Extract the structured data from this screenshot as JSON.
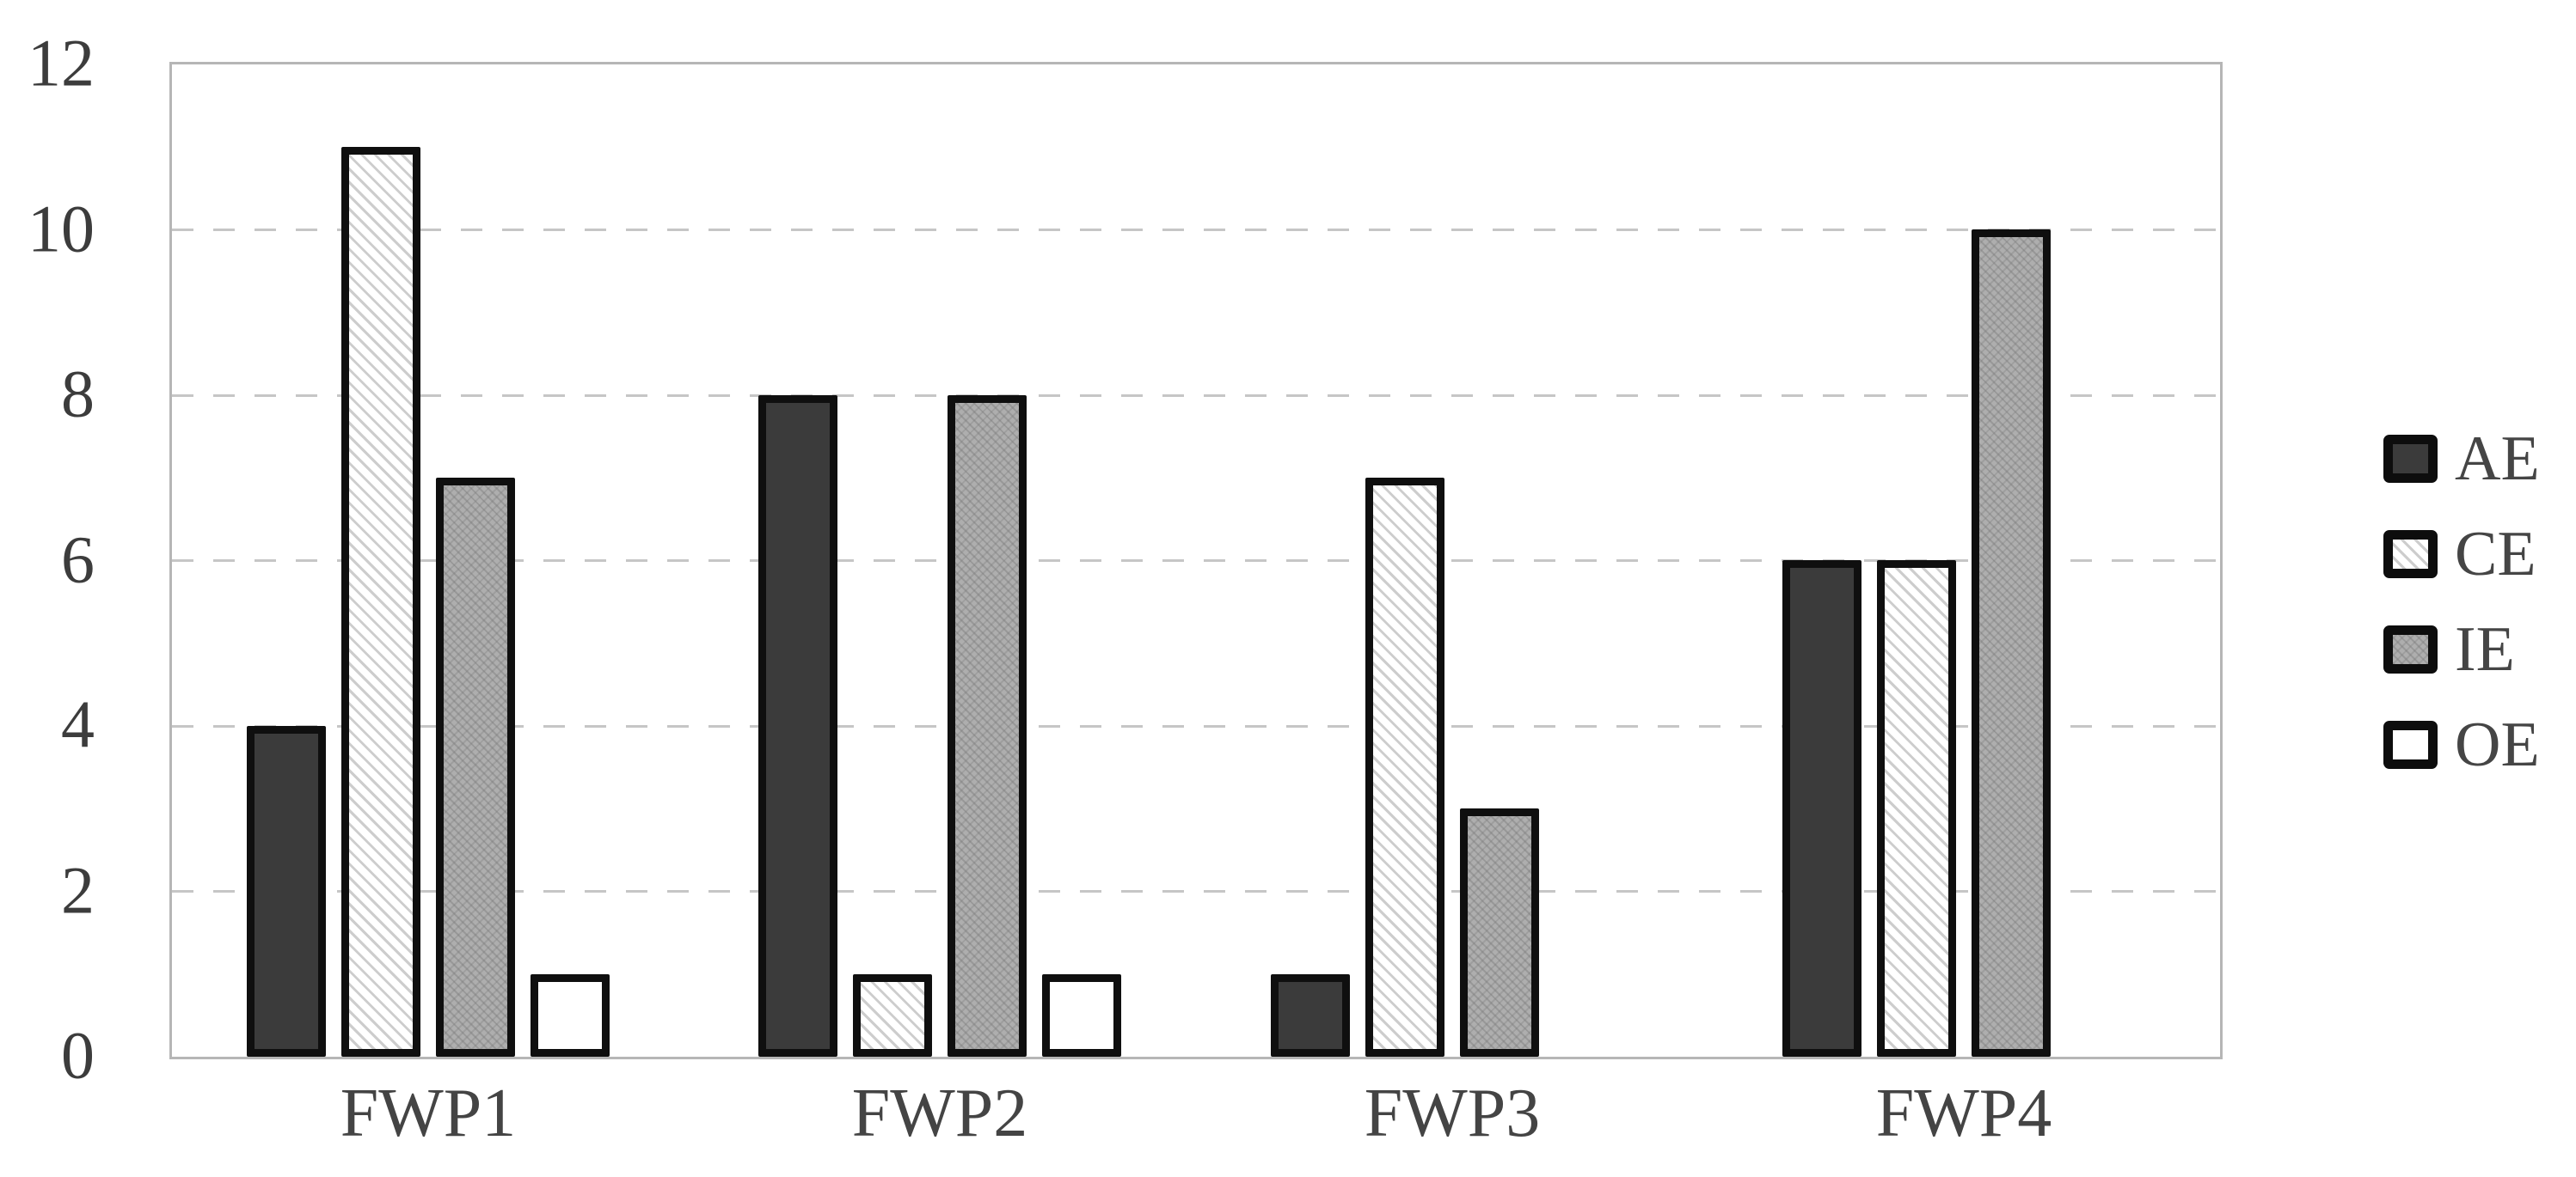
{
  "chart_data": {
    "type": "bar",
    "title": "",
    "xlabel": "",
    "ylabel": "",
    "categories": [
      "FWP1",
      "FWP2",
      "FWP3",
      "FWP4"
    ],
    "series": [
      {
        "name": "AE",
        "values": [
          4,
          8,
          1,
          6
        ],
        "pattern": "solid-dark",
        "fill": "#3b3b3b"
      },
      {
        "name": "CE",
        "values": [
          11,
          1,
          7,
          6
        ],
        "pattern": "diagonal-hatch",
        "fill": "#ffffff",
        "hatch_color": "#cdcdcd"
      },
      {
        "name": "IE",
        "values": [
          7,
          8,
          3,
          10
        ],
        "pattern": "fine-texture",
        "fill": "#aeaeae"
      },
      {
        "name": "OE",
        "values": [
          1,
          1,
          0,
          0
        ],
        "pattern": "solid-white",
        "fill": "#ffffff"
      }
    ],
    "ylim": [
      0,
      12
    ],
    "yticks": [
      0,
      2,
      4,
      6,
      8,
      10,
      12
    ],
    "grid": {
      "horizontal": true,
      "style": "dashed",
      "color": "#c6c6c6"
    },
    "legend": {
      "position": "right",
      "entries": [
        "AE",
        "CE",
        "IE",
        "OE"
      ]
    },
    "bar_border_color": "#0f0f0f",
    "frame_color": "#b6b6b6",
    "axis_text_color": "#3c3c3c",
    "background_color": "#ffffff"
  }
}
